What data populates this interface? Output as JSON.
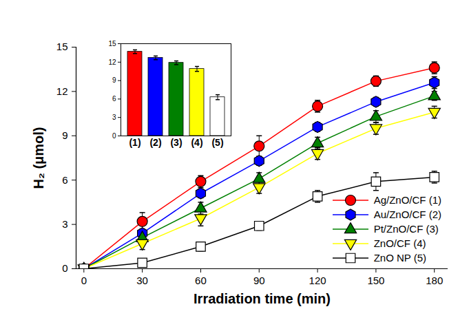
{
  "chart_data": [
    {
      "type": "line",
      "xlabel": "Irradiation time (min)",
      "ylabel": "H₂ (μmol)",
      "x": [
        0,
        30,
        60,
        90,
        120,
        150,
        180
      ],
      "xlim": [
        -4,
        187
      ],
      "xticks": [
        0,
        30,
        60,
        90,
        120,
        150,
        180
      ],
      "ylim": [
        0,
        15
      ],
      "yticks": [
        0,
        3,
        6,
        9,
        12,
        15
      ],
      "legend": "lower right",
      "series": [
        {
          "name": "Ag/ZnO/CF (1)",
          "color": "#ff0000",
          "marker": "circle",
          "values": [
            0,
            3.2,
            5.9,
            8.3,
            11.0,
            12.7,
            13.6
          ],
          "errors": [
            0,
            0.6,
            0.4,
            0.7,
            0.4,
            0.35,
            0.4
          ]
        },
        {
          "name": "Au/ZnO/CF (2)",
          "color": "#0000ff",
          "marker": "hexagon",
          "values": [
            0,
            2.4,
            5.1,
            7.3,
            9.6,
            11.3,
            12.6
          ],
          "errors": [
            0,
            0.3,
            0.3,
            0.3,
            0.3,
            0.3,
            0.4
          ]
        },
        {
          "name": "Pt/ZnO/CF (3)",
          "color": "#008000",
          "marker": "triangle",
          "values": [
            0,
            2.1,
            4.1,
            6.1,
            8.5,
            10.3,
            11.7
          ],
          "errors": [
            0,
            0.3,
            0.4,
            0.4,
            0.4,
            0.4,
            0.3
          ]
        },
        {
          "name": "ZnO/CF (4)",
          "color": "#ffff00",
          "marker": "triangle-down",
          "values": [
            0,
            1.7,
            3.4,
            5.5,
            7.8,
            9.5,
            10.6
          ],
          "errors": [
            0,
            0.4,
            0.5,
            0.4,
            0.4,
            0.4,
            0.4
          ]
        },
        {
          "name": "ZnO NP (5)",
          "color": "#000000",
          "marker": "open square",
          "values": [
            0,
            0.4,
            1.5,
            2.9,
            4.9,
            5.9,
            6.2
          ],
          "errors": [
            0,
            0.2,
            0.3,
            0.3,
            0.4,
            0.6,
            0.4
          ]
        }
      ]
    },
    {
      "type": "bar",
      "categories": [
        "(1)",
        "(2)",
        "(3)",
        "(4)",
        "(5)"
      ],
      "values": [
        13.7,
        12.7,
        11.9,
        10.9,
        6.3
      ],
      "errors": [
        0.3,
        0.3,
        0.3,
        0.4,
        0.4
      ],
      "colors": [
        "#ff0000",
        "#0000ff",
        "#008000",
        "#ffff00",
        "#ffffff"
      ],
      "ylim": [
        0,
        15
      ],
      "yticks": [
        0,
        3,
        6,
        9,
        12,
        15
      ]
    }
  ]
}
